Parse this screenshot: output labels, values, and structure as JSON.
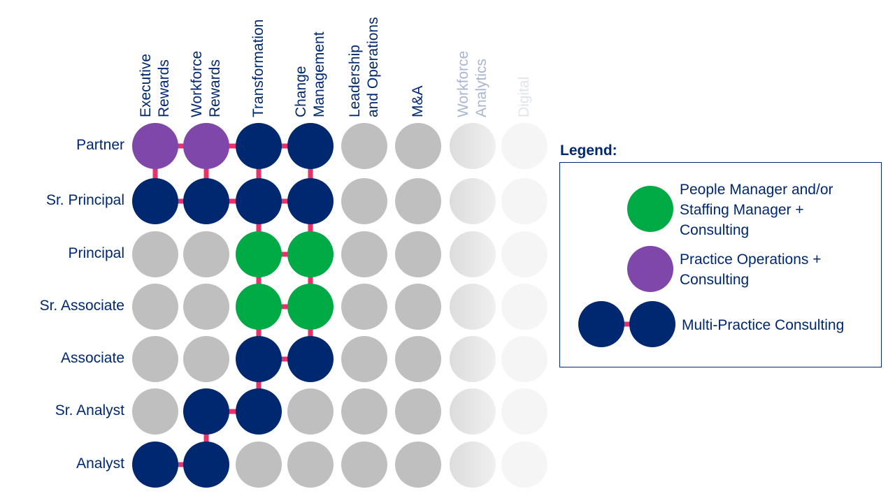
{
  "columns": [
    {
      "label_lines": [
        "Executive",
        "Rewards"
      ],
      "color": "#002870"
    },
    {
      "label_lines": [
        "Workforce",
        "Rewards"
      ],
      "color": "#002870"
    },
    {
      "label_lines": [
        "Transformation",
        ""
      ],
      "color": "#002870"
    },
    {
      "label_lines": [
        "Change",
        "Management"
      ],
      "color": "#002870"
    },
    {
      "label_lines": [
        "Leadership",
        "and Operations"
      ],
      "color": "#002870"
    },
    {
      "label_lines": [
        "M&A",
        ""
      ],
      "color": "#002870"
    },
    {
      "label_lines": [
        "Workforce",
        "Analytics"
      ],
      "color": "#a9b5d0"
    },
    {
      "label_lines": [
        "Digital",
        ""
      ],
      "color": "#dfe4ee"
    }
  ],
  "rows": [
    "Partner",
    "Sr. Principal",
    "Principal",
    "Sr. Associate",
    "Associate",
    "Sr. Analyst",
    "Analyst"
  ],
  "colors": {
    "N": "#002870",
    "P": "#8047ab",
    "G": "#00aa44",
    "g": "#bfbfbf",
    "l": "#e6e6e6",
    "x": "#f5f5f5",
    "connector": "#e8306a"
  },
  "grid": [
    [
      "P",
      "P",
      "N",
      "N",
      "g",
      "g",
      "l",
      "x"
    ],
    [
      "N",
      "N",
      "N",
      "N",
      "g",
      "g",
      "l",
      "x"
    ],
    [
      "g",
      "g",
      "G",
      "G",
      "g",
      "g",
      "l",
      "x"
    ],
    [
      "g",
      "g",
      "G",
      "G",
      "g",
      "g",
      "l",
      "x"
    ],
    [
      "g",
      "g",
      "N",
      "N",
      "g",
      "g",
      "l",
      "x"
    ],
    [
      "g",
      "N",
      "N",
      "g",
      "g",
      "g",
      "l",
      "x"
    ],
    [
      "N",
      "N",
      "g",
      "g",
      "g",
      "g",
      "l",
      "x"
    ]
  ],
  "h_links": [
    [
      0,
      0
    ],
    [
      0,
      1
    ],
    [
      0,
      2
    ],
    [
      1,
      0
    ],
    [
      1,
      1
    ],
    [
      1,
      2
    ],
    [
      2,
      2
    ],
    [
      3,
      2
    ],
    [
      4,
      2
    ],
    [
      5,
      1
    ],
    [
      6,
      0
    ]
  ],
  "v_links": [
    [
      0,
      0
    ],
    [
      0,
      1
    ],
    [
      0,
      2
    ],
    [
      1,
      2
    ],
    [
      2,
      2
    ],
    [
      3,
      2
    ],
    [
      4,
      2
    ],
    [
      0,
      3
    ],
    [
      1,
      3
    ],
    [
      2,
      3
    ],
    [
      3,
      3
    ],
    [
      5,
      1
    ]
  ],
  "legend": {
    "title": "Legend:",
    "items": [
      {
        "label": "People Manager and/or Staffing Manager + Consulting",
        "color": "#00aa44"
      },
      {
        "label": "Practice Operations + Consulting",
        "color": "#8047ab"
      },
      {
        "label": "Multi-Practice Consulting",
        "color": "#002870"
      }
    ]
  }
}
